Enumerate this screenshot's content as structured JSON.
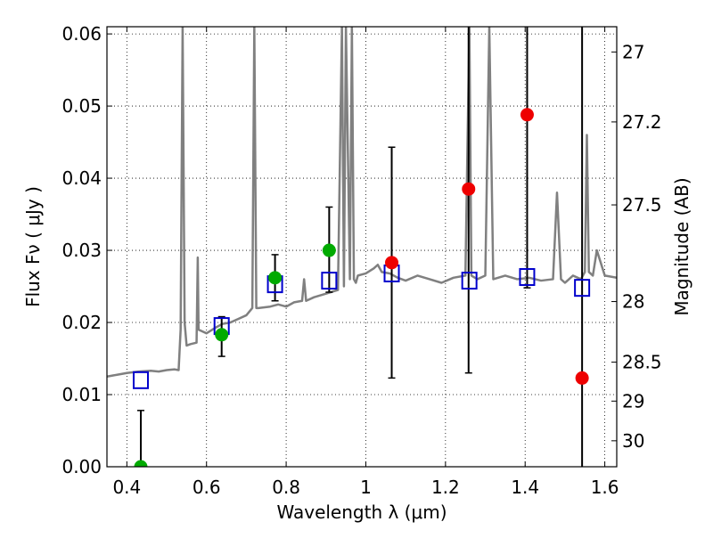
{
  "chart_data": {
    "type": "scatter",
    "title": "",
    "xlabel": "Wavelength  λ (μm)",
    "ylabel": "Flux  Fν  ( μJy )",
    "right_ylabel": "Magnitude (AB)",
    "xlim": [
      0.35,
      1.63
    ],
    "ylim": [
      0.0,
      0.061
    ],
    "x_ticks": [
      0.4,
      0.6,
      0.8,
      1.0,
      1.2,
      1.4,
      1.6
    ],
    "x_tick_labels": [
      "0.4",
      "0.6",
      "0.8",
      "1",
      "1.2",
      "1.4",
      "1.6"
    ],
    "y_ticks": [
      0.0,
      0.01,
      0.02,
      0.03,
      0.04,
      0.05,
      0.06
    ],
    "y_tick_labels": [
      "0.00",
      "0.01",
      "0.02",
      "0.03",
      "0.04",
      "0.05",
      "0.06"
    ],
    "right_y_ticks": [
      {
        "label": "27",
        "flux": 0.0575
      },
      {
        "label": "27.2",
        "flux": 0.0478
      },
      {
        "label": "27.5",
        "flux": 0.0363
      },
      {
        "label": "28",
        "flux": 0.0229
      },
      {
        "label": "28.5",
        "flux": 0.0145
      },
      {
        "label": "29",
        "flux": 0.0091
      },
      {
        "label": "30",
        "flux": 0.0036
      }
    ],
    "grid": true,
    "colors": {
      "spectrum": "#808080",
      "model_points": "#0000cc",
      "detections": "#00aa00",
      "upper_limits": "#ee0000",
      "errorbars": "#000000"
    },
    "series": [
      {
        "kind": "spectrum_line",
        "x": [
          0.35,
          0.38,
          0.4,
          0.43,
          0.46,
          0.48,
          0.5,
          0.52,
          0.53,
          0.535,
          0.54,
          0.545,
          0.55,
          0.56,
          0.575,
          0.578,
          0.58,
          0.6,
          0.62,
          0.64,
          0.66,
          0.68,
          0.7,
          0.715,
          0.72,
          0.725,
          0.73,
          0.76,
          0.78,
          0.8,
          0.82,
          0.84,
          0.845,
          0.85,
          0.87,
          0.9,
          0.93,
          0.94,
          0.945,
          0.95,
          0.96,
          0.965,
          0.97,
          0.975,
          0.98,
          1.0,
          1.02,
          1.03,
          1.04,
          1.06,
          1.08,
          1.1,
          1.13,
          1.16,
          1.19,
          1.22,
          1.25,
          1.26,
          1.265,
          1.28,
          1.3,
          1.31,
          1.32,
          1.35,
          1.38,
          1.41,
          1.44,
          1.47,
          1.48,
          1.49,
          1.5,
          1.52,
          1.54,
          1.55,
          1.555,
          1.56,
          1.57,
          1.58,
          1.6,
          1.63
        ],
        "y": [
          0.0125,
          0.0128,
          0.013,
          0.0132,
          0.0133,
          0.0132,
          0.0134,
          0.0135,
          0.0134,
          0.019,
          0.061,
          0.02,
          0.0168,
          0.017,
          0.0172,
          0.029,
          0.019,
          0.0185,
          0.0192,
          0.0198,
          0.02,
          0.0205,
          0.021,
          0.022,
          0.061,
          0.022,
          0.022,
          0.0222,
          0.0225,
          0.0222,
          0.0228,
          0.023,
          0.026,
          0.023,
          0.0235,
          0.024,
          0.0245,
          0.061,
          0.025,
          0.061,
          0.026,
          0.061,
          0.026,
          0.0255,
          0.0265,
          0.0268,
          0.0275,
          0.028,
          0.027,
          0.0268,
          0.0262,
          0.0258,
          0.0265,
          0.026,
          0.0255,
          0.0262,
          0.0265,
          0.061,
          0.0265,
          0.026,
          0.0265,
          0.061,
          0.026,
          0.0265,
          0.026,
          0.0262,
          0.0258,
          0.026,
          0.038,
          0.026,
          0.0255,
          0.0265,
          0.026,
          0.027,
          0.046,
          0.027,
          0.0265,
          0.03,
          0.0265,
          0.0262
        ]
      },
      {
        "kind": "model_squares",
        "x": [
          0.435,
          0.638,
          0.772,
          0.908,
          1.065,
          1.26,
          1.405,
          1.543
        ],
        "y": [
          0.012,
          0.0195,
          0.0253,
          0.0258,
          0.0268,
          0.0258,
          0.0263,
          0.0248
        ]
      },
      {
        "kind": "green_points",
        "x": [
          0.435,
          0.638,
          0.772,
          0.908
        ],
        "y": [
          0.0,
          0.0183,
          0.0262,
          0.03
        ],
        "err_low": [
          0.0,
          0.003,
          0.0032,
          0.0058
        ],
        "err_high": [
          0.0078,
          0.0025,
          0.0032,
          0.006
        ]
      },
      {
        "kind": "red_points",
        "x": [
          1.065,
          1.258,
          1.405,
          1.543
        ],
        "y": [
          0.0283,
          0.0385,
          0.0488,
          0.0123
        ],
        "err_low": [
          0.016,
          0.0255,
          0.024,
          0.0123
        ],
        "err_high": [
          0.016,
          0.025,
          0.024,
          0.0487
        ]
      }
    ]
  }
}
